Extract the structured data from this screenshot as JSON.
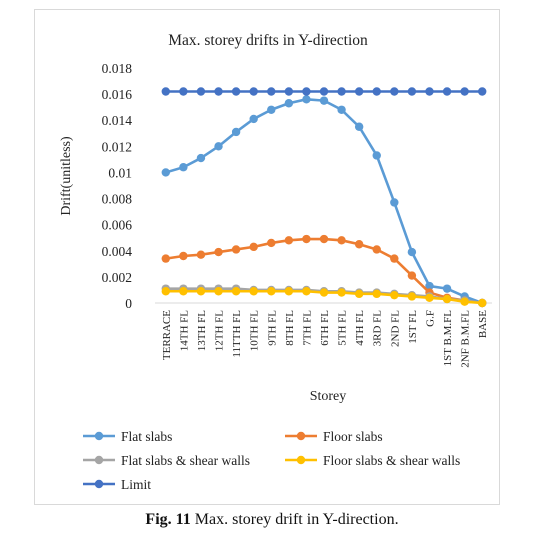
{
  "chart_data": {
    "type": "line",
    "title": "Max. storey drifts in Y-direction",
    "xlabel": "Storey",
    "ylabel": "Drift(unitless)",
    "ylim": [
      0,
      0.018
    ],
    "yticks": [
      "0",
      "0.002",
      "0.004",
      "0.006",
      "0.008",
      "0.01",
      "0.012",
      "0.014",
      "0.016",
      "0.018"
    ],
    "grid": false,
    "legend_position": "bottom",
    "categories": [
      "TERRACE",
      "14TH FL",
      "13TH FL",
      "12TH FL",
      "11TTH FL",
      "10TH FL",
      "9TH FL",
      "8TH FL",
      "7TH FL",
      "6TH FL",
      "5TH FL",
      "4TH FL",
      "3RD FL",
      "2ND FL",
      "1ST FL",
      "G.F",
      "1ST B.M.FL",
      "2NF B.M.FL",
      "BASE"
    ],
    "series": [
      {
        "name": "Flat slabs",
        "color": "#5b9bd5",
        "values": [
          0.01,
          0.0104,
          0.0111,
          0.012,
          0.0131,
          0.0141,
          0.0148,
          0.0153,
          0.0156,
          0.0155,
          0.0148,
          0.0135,
          0.0113,
          0.0077,
          0.0039,
          0.0013,
          0.0011,
          0.0005,
          0.0
        ]
      },
      {
        "name": "Floor slabs",
        "color": "#ed7d31",
        "values": [
          0.0034,
          0.0036,
          0.0037,
          0.0039,
          0.0041,
          0.0043,
          0.0046,
          0.0048,
          0.0049,
          0.0049,
          0.0048,
          0.0045,
          0.0041,
          0.0034,
          0.0021,
          0.0008,
          0.0004,
          0.0002,
          0.0
        ]
      },
      {
        "name": "Flat slabs & shear walls",
        "color": "#a5a5a5",
        "values": [
          0.0011,
          0.0011,
          0.0011,
          0.0011,
          0.0011,
          0.001,
          0.001,
          0.001,
          0.001,
          0.0009,
          0.0009,
          0.0008,
          0.0008,
          0.0007,
          0.0006,
          0.0005,
          0.0003,
          0.0002,
          0.0
        ]
      },
      {
        "name": "Floor slabs & shear walls",
        "color": "#ffc000",
        "values": [
          0.0009,
          0.0009,
          0.0009,
          0.0009,
          0.0009,
          0.0009,
          0.0009,
          0.0009,
          0.0009,
          0.0008,
          0.0008,
          0.0007,
          0.0007,
          0.0006,
          0.0005,
          0.0004,
          0.0003,
          0.0001,
          0.0
        ]
      },
      {
        "name": "Limit",
        "color": "#4472c4",
        "values": [
          0.0162,
          0.0162,
          0.0162,
          0.0162,
          0.0162,
          0.0162,
          0.0162,
          0.0162,
          0.0162,
          0.0162,
          0.0162,
          0.0162,
          0.0162,
          0.0162,
          0.0162,
          0.0162,
          0.0162,
          0.0162,
          0.0162
        ]
      }
    ]
  },
  "caption": {
    "label": "Fig. 11",
    "text": " Max. storey drift in Y-direction."
  }
}
